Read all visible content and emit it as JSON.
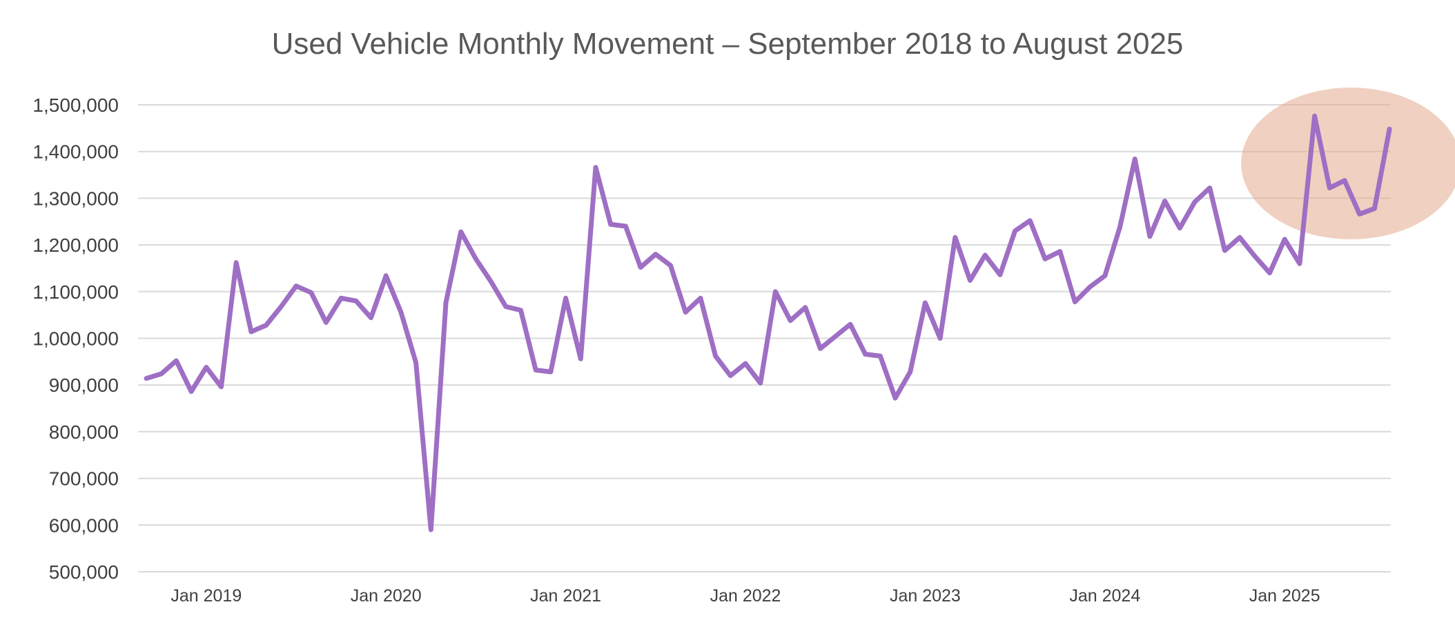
{
  "chart_data": {
    "type": "line",
    "title": "Used Vehicle Monthly Movement – September 2018 to August 2025",
    "xlabel": "",
    "ylabel": "",
    "ylim": [
      500000,
      1500000
    ],
    "yticks": [
      "500,000",
      "600,000",
      "700,000",
      "800,000",
      "900,000",
      "1,000,000",
      "1,100,000",
      "1,200,000",
      "1,300,000",
      "1,400,000",
      "1,500,000"
    ],
    "xticks": [
      "Jan 2019",
      "Jan 2020",
      "Jan 2021",
      "Jan 2022",
      "Jan 2023",
      "Jan 2024",
      "Jan 2025"
    ],
    "grid": "horizontal",
    "legend": "none",
    "highlight": {
      "from": "2025-01",
      "to": "2025-08",
      "color": "#e8b8a0"
    },
    "colors": {
      "line": "#9e6fc4",
      "highlight_fill": "#e3a98c",
      "gridline": "#d9d9d9"
    },
    "x": [
      "2018-09",
      "2018-10",
      "2018-11",
      "2018-12",
      "2019-01",
      "2019-02",
      "2019-03",
      "2019-04",
      "2019-05",
      "2019-06",
      "2019-07",
      "2019-08",
      "2019-09",
      "2019-10",
      "2019-11",
      "2019-12",
      "2020-01",
      "2020-02",
      "2020-03",
      "2020-04",
      "2020-05",
      "2020-06",
      "2020-07",
      "2020-08",
      "2020-09",
      "2020-10",
      "2020-11",
      "2020-12",
      "2021-01",
      "2021-02",
      "2021-03",
      "2021-04",
      "2021-05",
      "2021-06",
      "2021-07",
      "2021-08",
      "2021-09",
      "2021-10",
      "2021-11",
      "2021-12",
      "2022-01",
      "2022-02",
      "2022-03",
      "2022-04",
      "2022-05",
      "2022-06",
      "2022-07",
      "2022-08",
      "2022-09",
      "2022-10",
      "2022-11",
      "2022-12",
      "2023-01",
      "2023-02",
      "2023-03",
      "2023-04",
      "2023-05",
      "2023-06",
      "2023-07",
      "2023-08",
      "2023-09",
      "2023-10",
      "2023-11",
      "2023-12",
      "2024-01",
      "2024-02",
      "2024-03",
      "2024-04",
      "2024-05",
      "2024-06",
      "2024-07",
      "2024-08",
      "2024-09",
      "2024-10",
      "2024-11",
      "2024-12",
      "2025-01",
      "2025-02",
      "2025-03",
      "2025-04",
      "2025-05",
      "2025-06",
      "2025-07",
      "2025-08"
    ],
    "series": [
      {
        "values": [
          914000,
          924000,
          952000,
          886000,
          938000,
          896000,
          1162000,
          1014000,
          1028000,
          1068000,
          1112000,
          1098000,
          1034000,
          1086000,
          1080000,
          1044000,
          1134000,
          1056000,
          948000,
          590000,
          1076000,
          1228000,
          1170000,
          1122000,
          1068000,
          1060000,
          932000,
          928000,
          1086000,
          956000,
          1366000,
          1244000,
          1240000,
          1152000,
          1180000,
          1156000,
          1056000,
          1086000,
          962000,
          920000,
          946000,
          904000,
          1100000,
          1038000,
          1066000,
          978000,
          1004000,
          1030000,
          966000,
          962000,
          872000,
          928000,
          1076000,
          1000000,
          1216000,
          1124000,
          1178000,
          1136000,
          1230000,
          1252000,
          1170000,
          1186000,
          1078000,
          1110000,
          1134000,
          1238000,
          1384000,
          1218000,
          1294000,
          1236000,
          1292000,
          1322000,
          1188000,
          1216000,
          1176000,
          1140000,
          1212000,
          1160000,
          1476000,
          1322000,
          1338000,
          1266000,
          1278000,
          1448000
        ]
      }
    ]
  }
}
